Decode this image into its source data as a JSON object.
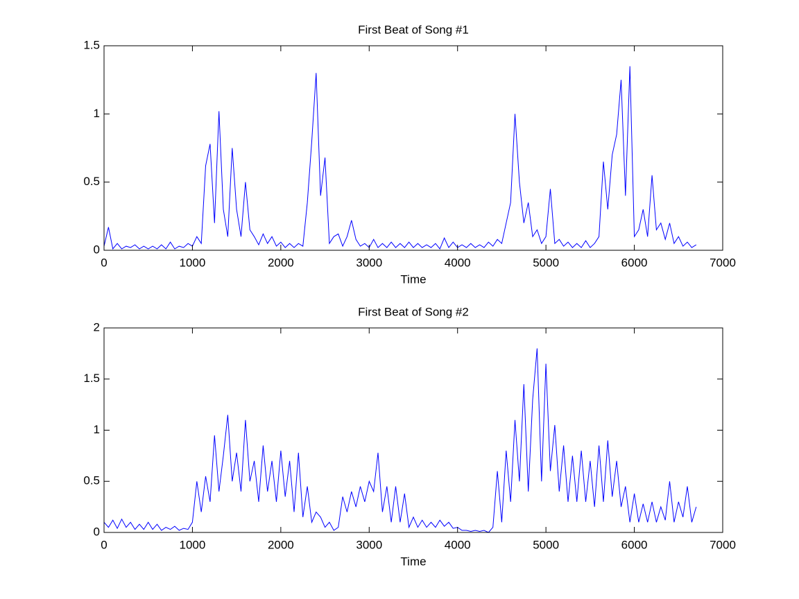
{
  "chart_data": [
    {
      "type": "line",
      "title": "First Beat of Song #1",
      "xlabel": "Time",
      "color": "#0000ff",
      "x": [
        0,
        50,
        100,
        150,
        200,
        250,
        300,
        350,
        400,
        450,
        500,
        550,
        600,
        650,
        700,
        750,
        800,
        850,
        900,
        950,
        1000,
        1050,
        1100,
        1150,
        1200,
        1250,
        1300,
        1350,
        1400,
        1450,
        1500,
        1550,
        1600,
        1650,
        1700,
        1750,
        1800,
        1850,
        1900,
        1950,
        2000,
        2050,
        2100,
        2150,
        2200,
        2250,
        2300,
        2350,
        2400,
        2450,
        2500,
        2550,
        2600,
        2650,
        2700,
        2750,
        2800,
        2850,
        2900,
        2950,
        3000,
        3050,
        3100,
        3150,
        3200,
        3250,
        3300,
        3350,
        3400,
        3450,
        3500,
        3550,
        3600,
        3650,
        3700,
        3750,
        3800,
        3850,
        3900,
        3950,
        4000,
        4050,
        4100,
        4150,
        4200,
        4250,
        4300,
        4350,
        4400,
        4450,
        4500,
        4550,
        4600,
        4650,
        4700,
        4750,
        4800,
        4850,
        4900,
        4950,
        5000,
        5050,
        5100,
        5150,
        5200,
        5250,
        5300,
        5350,
        5400,
        5450,
        5500,
        5550,
        5600,
        5650,
        5700,
        5750,
        5800,
        5850,
        5900,
        5950,
        6000,
        6050,
        6100,
        6150,
        6200,
        6250,
        6300,
        6350,
        6400,
        6450,
        6500,
        6550,
        6600,
        6650,
        6700
      ],
      "values": [
        0.03,
        0.17,
        0.01,
        0.05,
        0.01,
        0.03,
        0.02,
        0.04,
        0.01,
        0.03,
        0.01,
        0.03,
        0.01,
        0.04,
        0.01,
        0.06,
        0.01,
        0.03,
        0.02,
        0.05,
        0.03,
        0.1,
        0.05,
        0.62,
        0.78,
        0.2,
        1.02,
        0.3,
        0.1,
        0.75,
        0.3,
        0.1,
        0.5,
        0.15,
        0.1,
        0.04,
        0.12,
        0.05,
        0.1,
        0.03,
        0.06,
        0.02,
        0.05,
        0.02,
        0.05,
        0.03,
        0.35,
        0.8,
        1.3,
        0.4,
        0.68,
        0.05,
        0.1,
        0.12,
        0.03,
        0.1,
        0.22,
        0.08,
        0.03,
        0.05,
        0.02,
        0.08,
        0.02,
        0.05,
        0.02,
        0.06,
        0.02,
        0.05,
        0.02,
        0.06,
        0.02,
        0.05,
        0.02,
        0.04,
        0.02,
        0.05,
        0.01,
        0.09,
        0.02,
        0.06,
        0.02,
        0.04,
        0.02,
        0.05,
        0.02,
        0.04,
        0.02,
        0.06,
        0.03,
        0.08,
        0.05,
        0.2,
        0.35,
        1.0,
        0.5,
        0.2,
        0.35,
        0.1,
        0.15,
        0.05,
        0.1,
        0.45,
        0.05,
        0.08,
        0.03,
        0.06,
        0.02,
        0.05,
        0.02,
        0.07,
        0.02,
        0.05,
        0.1,
        0.65,
        0.3,
        0.7,
        0.85,
        1.25,
        0.4,
        1.35,
        0.1,
        0.15,
        0.3,
        0.1,
        0.55,
        0.15,
        0.2,
        0.08,
        0.2,
        0.05,
        0.1,
        0.03,
        0.06,
        0.02,
        0.04
      ],
      "xlim": [
        0,
        7000
      ],
      "xticks": [
        0,
        1000,
        2000,
        3000,
        4000,
        5000,
        6000,
        7000
      ],
      "ylim": [
        0,
        1.5
      ],
      "yticks": [
        0,
        0.5,
        1,
        1.5
      ]
    },
    {
      "type": "line",
      "title": "First Beat of Song #2",
      "xlabel": "Time",
      "color": "#0000ff",
      "x": [
        0,
        50,
        100,
        150,
        200,
        250,
        300,
        350,
        400,
        450,
        500,
        550,
        600,
        650,
        700,
        750,
        800,
        850,
        900,
        950,
        1000,
        1050,
        1100,
        1150,
        1200,
        1250,
        1300,
        1350,
        1400,
        1450,
        1500,
        1550,
        1600,
        1650,
        1700,
        1750,
        1800,
        1850,
        1900,
        1950,
        2000,
        2050,
        2100,
        2150,
        2200,
        2250,
        2300,
        2350,
        2400,
        2450,
        2500,
        2550,
        2600,
        2650,
        2700,
        2750,
        2800,
        2850,
        2900,
        2950,
        3000,
        3050,
        3100,
        3150,
        3200,
        3250,
        3300,
        3350,
        3400,
        3450,
        3500,
        3550,
        3600,
        3650,
        3700,
        3750,
        3800,
        3850,
        3900,
        3950,
        4000,
        4050,
        4100,
        4150,
        4200,
        4250,
        4300,
        4350,
        4400,
        4450,
        4500,
        4550,
        4600,
        4650,
        4700,
        4750,
        4800,
        4850,
        4900,
        4950,
        5000,
        5050,
        5100,
        5150,
        5200,
        5250,
        5300,
        5350,
        5400,
        5450,
        5500,
        5550,
        5600,
        5650,
        5700,
        5750,
        5800,
        5850,
        5900,
        5950,
        6000,
        6050,
        6100,
        6150,
        6200,
        6250,
        6300,
        6350,
        6400,
        6450,
        6500,
        6550,
        6600,
        6650,
        6700
      ],
      "values": [
        0.1,
        0.05,
        0.12,
        0.04,
        0.13,
        0.05,
        0.1,
        0.03,
        0.08,
        0.03,
        0.1,
        0.03,
        0.08,
        0.02,
        0.05,
        0.03,
        0.06,
        0.02,
        0.04,
        0.03,
        0.1,
        0.5,
        0.2,
        0.55,
        0.3,
        0.95,
        0.4,
        0.75,
        1.15,
        0.5,
        0.78,
        0.4,
        1.1,
        0.5,
        0.7,
        0.3,
        0.85,
        0.4,
        0.7,
        0.3,
        0.8,
        0.35,
        0.7,
        0.2,
        0.78,
        0.15,
        0.45,
        0.1,
        0.2,
        0.15,
        0.05,
        0.1,
        0.02,
        0.05,
        0.35,
        0.2,
        0.4,
        0.25,
        0.45,
        0.3,
        0.5,
        0.4,
        0.78,
        0.2,
        0.45,
        0.1,
        0.45,
        0.1,
        0.38,
        0.05,
        0.15,
        0.05,
        0.12,
        0.05,
        0.1,
        0.05,
        0.12,
        0.06,
        0.1,
        0.04,
        0.05,
        0.02,
        0.02,
        0.01,
        0.02,
        0.01,
        0.02,
        0,
        0.05,
        0.6,
        0.1,
        0.8,
        0.3,
        1.1,
        0.5,
        1.45,
        0.4,
        1.3,
        1.8,
        0.5,
        1.65,
        0.6,
        1.05,
        0.4,
        0.85,
        0.3,
        0.75,
        0.3,
        0.8,
        0.3,
        0.7,
        0.25,
        0.85,
        0.3,
        0.9,
        0.35,
        0.7,
        0.25,
        0.45,
        0.1,
        0.38,
        0.1,
        0.28,
        0.1,
        0.3,
        0.1,
        0.25,
        0.12,
        0.5,
        0.1,
        0.3,
        0.15,
        0.45,
        0.1,
        0.25
      ],
      "xlim": [
        0,
        7000
      ],
      "xticks": [
        0,
        1000,
        2000,
        3000,
        4000,
        5000,
        6000,
        7000
      ],
      "ylim": [
        0,
        2
      ],
      "yticks": [
        0,
        0.5,
        1,
        1.5,
        2
      ]
    }
  ]
}
